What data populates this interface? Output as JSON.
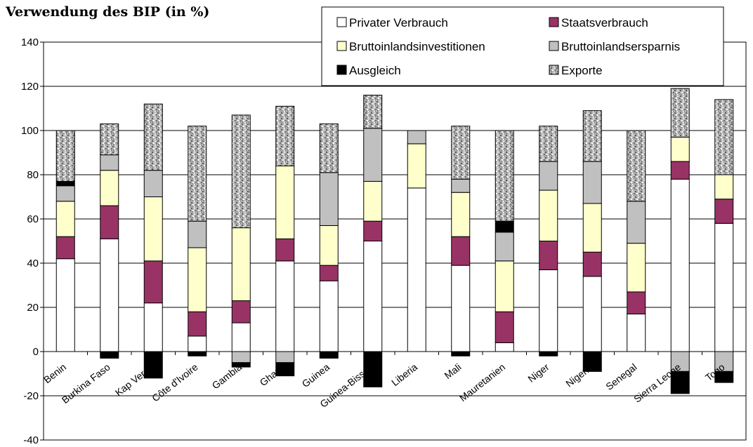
{
  "chart_data": {
    "type": "bar",
    "stacked": true,
    "title": "Verwendung des BIP (in %)",
    "xlabel": "",
    "ylabel": "",
    "ylim": [
      -40,
      140
    ],
    "yticks": [
      -40,
      -20,
      0,
      20,
      40,
      60,
      80,
      100,
      120,
      140
    ],
    "grid": "horizontal",
    "legend_position": "top-right",
    "categories": [
      "Benin",
      "Burkina Faso",
      "Kap Verde",
      "Côte d'Ivoire",
      "Gambia",
      "Ghana",
      "Guinea",
      "Guinea-Bissau",
      "Liberia",
      "Mali",
      "Mauretanien",
      "Niger",
      "Nigeria",
      "Senegal",
      "Sierra Leone",
      "Togo"
    ],
    "series": [
      {
        "name": "Privater Verbrauch",
        "color": "#ffffff",
        "pattern": "solid",
        "values": [
          42,
          51,
          22,
          7,
          13,
          41,
          32,
          50,
          74,
          39,
          4,
          37,
          34,
          17,
          78,
          58
        ]
      },
      {
        "name": "Staatsverbrauch",
        "color": "#993366",
        "pattern": "solid",
        "values": [
          10,
          15,
          19,
          11,
          10,
          10,
          7,
          9,
          0,
          13,
          14,
          13,
          11,
          10,
          8,
          11
        ]
      },
      {
        "name": "Bruttoinlandsinvestitionen",
        "color": "#ffffcc",
        "pattern": "solid",
        "values": [
          16,
          16,
          29,
          29,
          33,
          33,
          18,
          18,
          20,
          20,
          23,
          23,
          22,
          22,
          11,
          11
        ]
      },
      {
        "name": "Bruttoinlandsersparnis",
        "color": "#c0c0c0",
        "pattern": "solid",
        "values": [
          7,
          7,
          12,
          12,
          -5,
          -5,
          24,
          24,
          6,
          6,
          13,
          13,
          19,
          19,
          -9,
          -9
        ]
      },
      {
        "name": "Ausgleich",
        "color": "#000000",
        "pattern": "solid",
        "values": [
          2,
          -3,
          -12,
          -2,
          -2,
          -6,
          -3,
          -16,
          0,
          -2,
          5,
          -2,
          -9,
          0,
          -10,
          -5
        ]
      },
      {
        "name": "Exporte",
        "color": "#c0c0c0",
        "pattern": "speckled",
        "values": [
          23,
          14,
          30,
          43,
          51,
          27,
          22,
          15,
          0,
          24,
          41,
          16,
          23,
          32,
          22,
          34
        ]
      }
    ]
  }
}
